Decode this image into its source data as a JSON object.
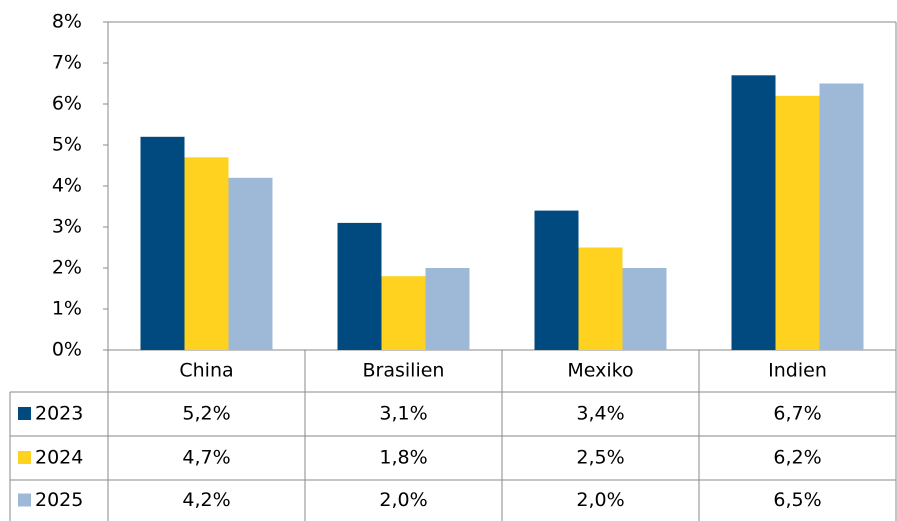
{
  "chart_data": {
    "type": "bar",
    "categories": [
      "China",
      "Brasilien",
      "Mexiko",
      "Indien"
    ],
    "series": [
      {
        "name": "2023",
        "color": "#004a80",
        "values": [
          5.2,
          3.1,
          3.4,
          6.7
        ],
        "value_labels": [
          "5,2%",
          "3,1%",
          "3,4%",
          "6,7%"
        ]
      },
      {
        "name": "2024",
        "color": "#ffd21f",
        "values": [
          4.7,
          1.8,
          2.5,
          6.2
        ],
        "value_labels": [
          "4,7%",
          "1,8%",
          "2,5%",
          "6,2%"
        ]
      },
      {
        "name": "2025",
        "color": "#9eb8d7",
        "values": [
          4.2,
          2.0,
          2.0,
          6.5
        ],
        "value_labels": [
          "4,2%",
          "2,0%",
          "2,0%",
          "6,5%"
        ]
      }
    ],
    "ylim": [
      0,
      8
    ],
    "yticks": [
      {
        "value": 0,
        "label": "0%"
      },
      {
        "value": 1,
        "label": "1%"
      },
      {
        "value": 2,
        "label": "2%"
      },
      {
        "value": 3,
        "label": "3%"
      },
      {
        "value": 4,
        "label": "4%"
      },
      {
        "value": 5,
        "label": "5%"
      },
      {
        "value": 6,
        "label": "6%"
      },
      {
        "value": 7,
        "label": "7%"
      },
      {
        "value": 8,
        "label": "8%"
      }
    ],
    "grid": false
  }
}
